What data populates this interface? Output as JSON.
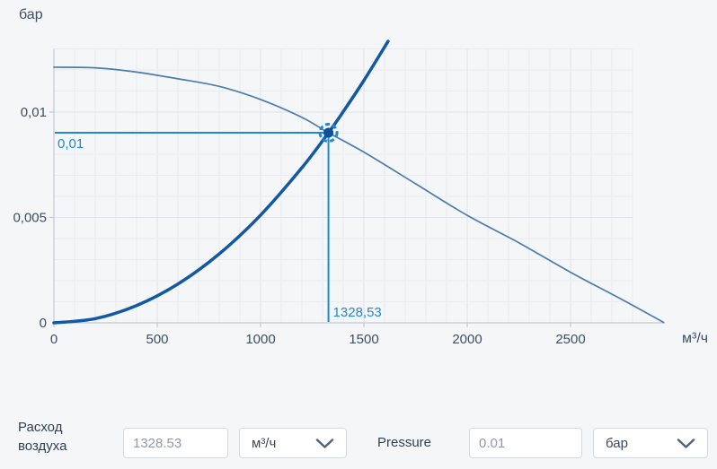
{
  "page": {
    "background": "#f5f6f8"
  },
  "chart_data": {
    "type": "line",
    "title": "",
    "ylabel": "бар",
    "xlabel": "м³/ч",
    "xlim": [
      0,
      2950
    ],
    "ylim": [
      0,
      0.0132
    ],
    "grid": {
      "on": true,
      "minor_x_step": 100,
      "minor_y_step": 0.001,
      "major_x_step": 500,
      "major_y_step": 0.005
    },
    "x_ticks": [
      {
        "v": 0,
        "label": "0"
      },
      {
        "v": 500,
        "label": "500"
      },
      {
        "v": 1000,
        "label": "1000"
      },
      {
        "v": 1500,
        "label": "1500"
      },
      {
        "v": 2000,
        "label": "2000"
      },
      {
        "v": 2500,
        "label": "2500"
      }
    ],
    "y_ticks": [
      {
        "v": 0,
        "label": "0"
      },
      {
        "v": 0.005,
        "label": "0,005"
      },
      {
        "v": 0.01,
        "label": "0,01"
      }
    ],
    "series": [
      {
        "name": "fan-curve",
        "color": "#4d7cad",
        "width": 1.7,
        "points": [
          [
            0,
            0.01213
          ],
          [
            200,
            0.0121
          ],
          [
            400,
            0.0119
          ],
          [
            600,
            0.01158
          ],
          [
            800,
            0.01122
          ],
          [
            1000,
            0.0106
          ],
          [
            1200,
            0.00975
          ],
          [
            1328.53,
            0.00902
          ],
          [
            1500,
            0.0081
          ],
          [
            1750,
            0.0066
          ],
          [
            2000,
            0.0051
          ],
          [
            2250,
            0.0038
          ],
          [
            2500,
            0.0024
          ],
          [
            2750,
            0.0011
          ],
          [
            2950,
            2e-05
          ]
        ]
      },
      {
        "name": "system-curve",
        "color": "#1258a4",
        "width": 3.5,
        "points": [
          [
            0,
            0
          ],
          [
            200,
            0.0002
          ],
          [
            400,
            0.00082
          ],
          [
            600,
            0.00184
          ],
          [
            800,
            0.00327
          ],
          [
            1000,
            0.00511
          ],
          [
            1200,
            0.00736
          ],
          [
            1328.53,
            0.00902
          ],
          [
            1400,
            0.01002
          ],
          [
            1500,
            0.0115
          ],
          [
            1617,
            0.01336
          ]
        ]
      }
    ],
    "marker": {
      "q": 1328.53,
      "p": 0.00902,
      "x_label": "1328,53",
      "y_label": "0,01",
      "color": "#1e88d2",
      "inner_color": "#0d4f9e"
    },
    "colors": {
      "grid_minor": "#e9ebf0",
      "grid_major": "#dfe3e9",
      "axis": "#c2c9d3",
      "tick_text": "#3d4f63"
    }
  },
  "controls": {
    "flow": {
      "label": "Расход воздуха",
      "value": "1328.53",
      "unit": "м³/ч"
    },
    "pressure": {
      "label": "Pressure",
      "value": "0.01",
      "unit": "бар"
    }
  }
}
